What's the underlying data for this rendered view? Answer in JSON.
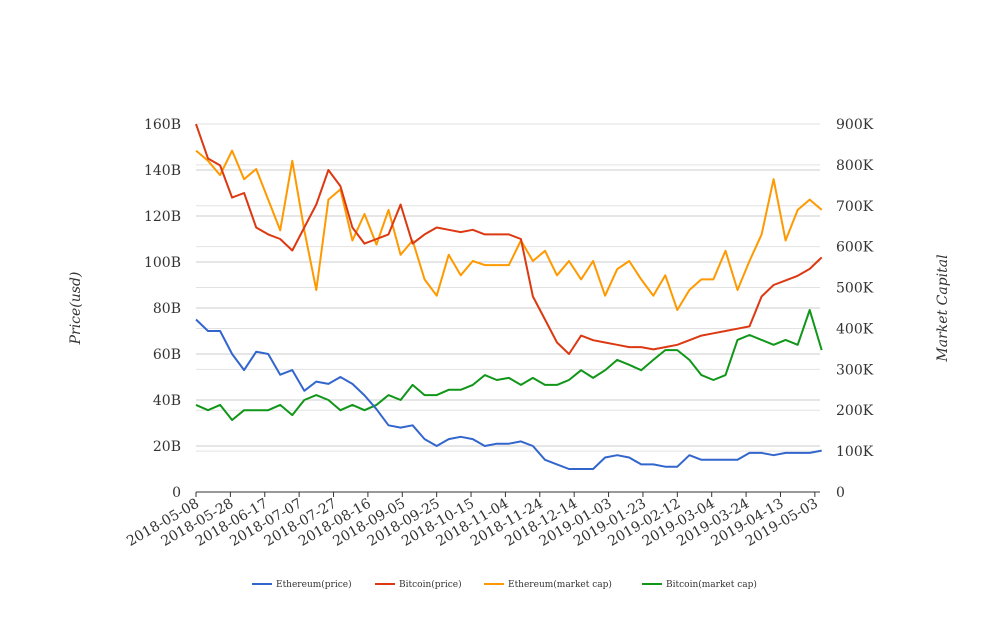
{
  "chart_data": {
    "type": "line",
    "x_start_date": "2018-05-08",
    "x_step_days": 7,
    "x_tick_labels": [
      "2018-05-08",
      "2018-05-28",
      "2018-06-17",
      "2018-07-07",
      "2018-07-27",
      "2018-08-16",
      "2018-09-05",
      "2018-09-25",
      "2018-10-15",
      "2018-11-04",
      "2018-11-24",
      "2018-12-14",
      "2019-01-03",
      "2019-01-23",
      "2019-02-12",
      "2019-03-04",
      "2019-03-24",
      "2019-04-13",
      "2019-05-03"
    ],
    "y_left": {
      "label": "Price(usd)",
      "range": [
        0,
        160
      ],
      "unit": "B",
      "ticks": [
        "0",
        "20B",
        "40B",
        "60B",
        "80B",
        "100B",
        "120B",
        "140B",
        "160B"
      ]
    },
    "y_right": {
      "label": "Market Capital",
      "range": [
        0,
        900
      ],
      "unit": "K",
      "ticks": [
        "0",
        "100K",
        "200K",
        "300K",
        "400K",
        "500K",
        "600K",
        "700K",
        "800K",
        "900K"
      ]
    },
    "grid": true,
    "legend_position": "bottom",
    "series": [
      {
        "name": "Ethereum(price)",
        "axis": "left",
        "color": "#3366cc",
        "values": [
          75,
          70,
          70,
          60,
          53,
          61,
          60,
          51,
          53,
          44,
          48,
          47,
          50,
          47,
          42,
          36,
          29,
          28,
          29,
          23,
          20,
          23,
          24,
          23,
          20,
          21,
          21,
          22,
          20,
          14,
          12,
          10,
          10,
          10,
          15,
          16,
          15,
          12,
          12,
          11,
          11,
          16,
          14,
          14,
          14,
          14,
          17,
          17,
          16,
          17,
          17,
          17,
          18
        ]
      },
      {
        "name": "Bitcoin(price)",
        "axis": "left",
        "color": "#dc3912",
        "values": [
          160,
          145,
          142,
          128,
          130,
          115,
          112,
          110,
          105,
          115,
          125,
          140,
          133,
          115,
          108,
          110,
          112,
          125,
          108,
          112,
          115,
          114,
          113,
          114,
          112,
          112,
          112,
          110,
          85,
          75,
          65,
          60,
          68,
          66,
          65,
          64,
          63,
          63,
          62,
          63,
          64,
          66,
          68,
          69,
          70,
          71,
          72,
          85,
          90,
          92,
          94,
          97,
          102
        ]
      },
      {
        "name": "Ethereum(market cap)",
        "axis": "right",
        "color": "#ff9900",
        "values": [
          835,
          810,
          775,
          835,
          765,
          790,
          715,
          640,
          810,
          640,
          494,
          715,
          740,
          615,
          680,
          605,
          690,
          580,
          615,
          520,
          480,
          580,
          530,
          565,
          555,
          555,
          555,
          615,
          565,
          590,
          530,
          565,
          520,
          565,
          480,
          545,
          565,
          520,
          480,
          530,
          445,
          494,
          520,
          520,
          590,
          494,
          565,
          630,
          765,
          615,
          690,
          715,
          690
        ]
      },
      {
        "name": "Bitcoin(market cap)",
        "axis": "right",
        "color": "#109618",
        "values": [
          213,
          200,
          213,
          176,
          200,
          200,
          200,
          213,
          188,
          225,
          237,
          225,
          200,
          213,
          200,
          213,
          237,
          225,
          262,
          237,
          237,
          250,
          250,
          262,
          286,
          274,
          279,
          262,
          279,
          262,
          262,
          274,
          298,
          279,
          298,
          323,
          311,
          298,
          323,
          347,
          347,
          323,
          286,
          274,
          286,
          372,
          384,
          372,
          360,
          372,
          360,
          445,
          347
        ]
      }
    ]
  }
}
